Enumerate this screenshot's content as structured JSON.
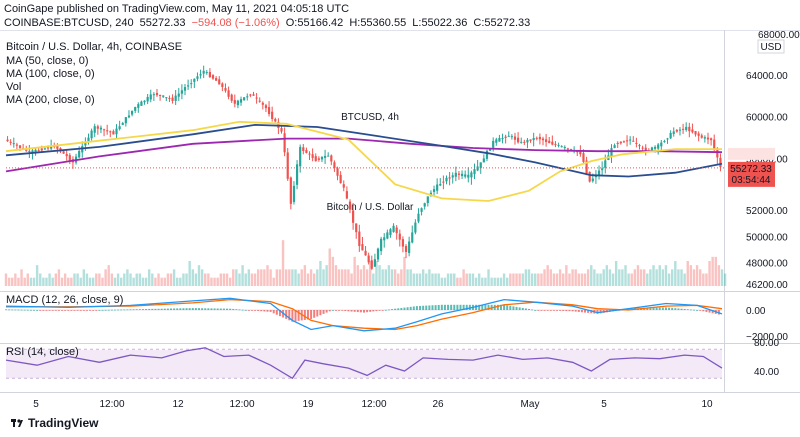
{
  "header": {
    "published": "CoinGape published on TradingView.com, May 11, 2021 04:05:18 UTC",
    "symbol": "COINBASE:BTCUSD, 240",
    "last": "55272.33",
    "change": "−594.08 (−1.06%)",
    "open": "O:55166.42",
    "high": "H:55360.55",
    "low": "L:55022.36",
    "close": "C:55272.33"
  },
  "legend": {
    "title": "Bitcoin / U.S. Dollar, 4h, COINBASE",
    "ma50": "MA (50, close, 0)",
    "ma100": "MA (100, close, 0)",
    "vol": "Vol",
    "ma200": "MA (200, close, 0)",
    "macd": "MACD (12, 26, close, 9)",
    "rsi": "RSI (14, close)"
  },
  "watermark": {
    "line1": "BTCUSD, 4h",
    "line2": "Bitcoin / U.S. Dollar"
  },
  "price_axis": {
    "currency": "USD",
    "top_tick": "68000.00",
    "ticks": [
      "64000.00",
      "60000.00",
      "56000.00",
      "52000.00",
      "50000.00",
      "48000.00",
      "46200.00"
    ],
    "last_label": "55272.33",
    "countdown": "03:54:44"
  },
  "macd_axis": {
    "ticks": [
      "0.00",
      "−2000.00"
    ]
  },
  "rsi_axis": {
    "ticks": [
      "80.00",
      "40.00"
    ]
  },
  "time_axis": {
    "ticks": [
      "5",
      "12:00",
      "12",
      "12:00",
      "19",
      "12:00",
      "26",
      "May",
      "5",
      "10"
    ]
  },
  "footer": {
    "brand": "TradingView"
  },
  "colors": {
    "up": "#26a69a",
    "down": "#ef5350",
    "ma50": "#f5d84a",
    "ma100": "#2a4d8f",
    "ma200": "#9c27b0",
    "rsi": "#7e57c2",
    "macd": "#2196f3",
    "signal": "#ff6d00"
  },
  "chart_data": [
    {
      "type": "candlestick",
      "title": "Bitcoin / U.S. Dollar, 4h, COINBASE",
      "ylim": [
        46200,
        68000
      ],
      "price_ticks": [
        46200,
        48000,
        50000,
        52000,
        56000,
        60000,
        64000
      ],
      "path": [
        [
          0,
          57800
        ],
        [
          8,
          56600
        ],
        [
          16,
          57200
        ],
        [
          22,
          55700
        ],
        [
          29,
          59000
        ],
        [
          35,
          58400
        ],
        [
          42,
          60900
        ],
        [
          48,
          62200
        ],
        [
          54,
          61600
        ],
        [
          58,
          62800
        ],
        [
          64,
          64400
        ],
        [
          69,
          63200
        ],
        [
          74,
          61200
        ],
        [
          79,
          62200
        ],
        [
          84,
          60800
        ],
        [
          89,
          58500
        ],
        [
          92,
          52500
        ],
        [
          95,
          57000
        ],
        [
          100,
          55900
        ],
        [
          104,
          56300
        ],
        [
          109,
          53600
        ],
        [
          114,
          49400
        ],
        [
          118,
          47600
        ],
        [
          121,
          49700
        ],
        [
          125,
          50700
        ],
        [
          129,
          48800
        ],
        [
          133,
          51800
        ],
        [
          137,
          53400
        ],
        [
          141,
          54300
        ],
        [
          145,
          54800
        ],
        [
          149,
          54600
        ],
        [
          153,
          55600
        ],
        [
          157,
          57600
        ],
        [
          162,
          58200
        ],
        [
          166,
          57500
        ],
        [
          171,
          58000
        ],
        [
          176,
          57400
        ],
        [
          181,
          56900
        ],
        [
          185,
          56500
        ],
        [
          188,
          54200
        ],
        [
          192,
          55300
        ],
        [
          196,
          57400
        ],
        [
          201,
          57800
        ],
        [
          206,
          56700
        ],
        [
          210,
          57200
        ],
        [
          215,
          58600
        ],
        [
          219,
          58900
        ],
        [
          224,
          58000
        ],
        [
          227,
          57800
        ],
        [
          230,
          55272
        ]
      ],
      "ma50": [
        [
          0,
          56700
        ],
        [
          30,
          57700
        ],
        [
          60,
          58700
        ],
        [
          75,
          59500
        ],
        [
          90,
          59300
        ],
        [
          110,
          57800
        ],
        [
          125,
          54000
        ],
        [
          140,
          52900
        ],
        [
          155,
          52700
        ],
        [
          168,
          53500
        ],
        [
          178,
          55000
        ],
        [
          188,
          55800
        ],
        [
          198,
          56400
        ],
        [
          215,
          56900
        ],
        [
          230,
          56900
        ]
      ],
      "ma100": [
        [
          0,
          56300
        ],
        [
          30,
          57100
        ],
        [
          60,
          58300
        ],
        [
          80,
          59200
        ],
        [
          100,
          59000
        ],
        [
          120,
          58100
        ],
        [
          140,
          57200
        ],
        [
          155,
          56500
        ],
        [
          170,
          55700
        ],
        [
          188,
          54700
        ],
        [
          200,
          54600
        ],
        [
          215,
          54900
        ],
        [
          230,
          55600
        ]
      ],
      "ma200": [
        [
          0,
          55000
        ],
        [
          30,
          56200
        ],
        [
          60,
          57400
        ],
        [
          90,
          57900
        ],
        [
          110,
          57900
        ],
        [
          130,
          57400
        ],
        [
          150,
          57000
        ],
        [
          170,
          56800
        ],
        [
          190,
          56700
        ],
        [
          210,
          56700
        ],
        [
          230,
          56600
        ]
      ],
      "volume": [
        3,
        2,
        2,
        3,
        2,
        4,
        2,
        3,
        2,
        2,
        5,
        3,
        2,
        2,
        3,
        2,
        3,
        4,
        2,
        3,
        2,
        2,
        3,
        3,
        2,
        4,
        3,
        2,
        2,
        3,
        3,
        2,
        4,
        5,
        3,
        2,
        3,
        2,
        3,
        4,
        3,
        2,
        3,
        3,
        2,
        2,
        4,
        3,
        2,
        3,
        2,
        2,
        3,
        3,
        4,
        2,
        2,
        3,
        3,
        6,
        4,
        3,
        5,
        4,
        3,
        3,
        2,
        2,
        2,
        3,
        3,
        3,
        2,
        4,
        4,
        3,
        5,
        3,
        4,
        3,
        3,
        4,
        4,
        4,
        5,
        4,
        2,
        4,
        4,
        11,
        4,
        4,
        4,
        4,
        3,
        4,
        5,
        3,
        4,
        3,
        4,
        6,
        4,
        5,
        9,
        7,
        5,
        4,
        4,
        4,
        4,
        3,
        7,
        5,
        4,
        5,
        4,
        6,
        3,
        6,
        5,
        4,
        4,
        5,
        4,
        4,
        3,
        4,
        7,
        4,
        4,
        3,
        3,
        3,
        4,
        3,
        4,
        3,
        3,
        3,
        2,
        2,
        3,
        3,
        3,
        2,
        2,
        4,
        3,
        3,
        3,
        2,
        3,
        2,
        2,
        4,
        2,
        2,
        2,
        2,
        3,
        2,
        3,
        3,
        3,
        3,
        3,
        4,
        4,
        3,
        3,
        3,
        3,
        4,
        5,
        4,
        3,
        3,
        4,
        3,
        5,
        3,
        4,
        4,
        3,
        3,
        3,
        4,
        5,
        4,
        3,
        3,
        4,
        5,
        4,
        3,
        6,
        4,
        4,
        5,
        3,
        3,
        4,
        5,
        4,
        4,
        3,
        4,
        5,
        4,
        5,
        4,
        5,
        3,
        4,
        6,
        4,
        4,
        3,
        6,
        5,
        4,
        5,
        4,
        3,
        3,
        6,
        7,
        7,
        5,
        4,
        3
      ]
    },
    {
      "type": "line",
      "title": "MACD (12, 26, close, 9)",
      "ylim": [
        -2400,
        1500
      ],
      "macd": [
        [
          0,
          300
        ],
        [
          20,
          200
        ],
        [
          40,
          350
        ],
        [
          60,
          700
        ],
        [
          72,
          900
        ],
        [
          85,
          500
        ],
        [
          92,
          -800
        ],
        [
          98,
          -1500
        ],
        [
          105,
          -1200
        ],
        [
          115,
          -1600
        ],
        [
          125,
          -1400
        ],
        [
          132,
          -900
        ],
        [
          140,
          -300
        ],
        [
          150,
          200
        ],
        [
          160,
          800
        ],
        [
          170,
          600
        ],
        [
          182,
          300
        ],
        [
          190,
          -200
        ],
        [
          200,
          100
        ],
        [
          212,
          500
        ],
        [
          222,
          350
        ],
        [
          230,
          -300
        ]
      ],
      "signal": [
        [
          0,
          250
        ],
        [
          20,
          250
        ],
        [
          40,
          300
        ],
        [
          60,
          550
        ],
        [
          72,
          800
        ],
        [
          85,
          650
        ],
        [
          92,
          100
        ],
        [
          98,
          -800
        ],
        [
          105,
          -1200
        ],
        [
          115,
          -1400
        ],
        [
          125,
          -1500
        ],
        [
          132,
          -1200
        ],
        [
          140,
          -700
        ],
        [
          150,
          -200
        ],
        [
          160,
          400
        ],
        [
          170,
          600
        ],
        [
          182,
          400
        ],
        [
          190,
          100
        ],
        [
          200,
          0
        ],
        [
          212,
          300
        ],
        [
          222,
          350
        ],
        [
          230,
          100
        ]
      ]
    },
    {
      "type": "line",
      "title": "RSI (14, close)",
      "ylim": [
        20,
        90
      ],
      "rsi": [
        [
          0,
          55
        ],
        [
          10,
          48
        ],
        [
          20,
          60
        ],
        [
          30,
          52
        ],
        [
          40,
          62
        ],
        [
          50,
          58
        ],
        [
          58,
          68
        ],
        [
          64,
          72
        ],
        [
          70,
          60
        ],
        [
          78,
          62
        ],
        [
          85,
          48
        ],
        [
          92,
          30
        ],
        [
          96,
          55
        ],
        [
          102,
          50
        ],
        [
          110,
          44
        ],
        [
          116,
          34
        ],
        [
          122,
          48
        ],
        [
          128,
          40
        ],
        [
          134,
          58
        ],
        [
          142,
          56
        ],
        [
          150,
          55
        ],
        [
          158,
          62
        ],
        [
          166,
          56
        ],
        [
          174,
          58
        ],
        [
          182,
          52
        ],
        [
          188,
          40
        ],
        [
          194,
          56
        ],
        [
          202,
          58
        ],
        [
          210,
          57
        ],
        [
          218,
          62
        ],
        [
          224,
          60
        ],
        [
          230,
          44
        ]
      ]
    }
  ]
}
